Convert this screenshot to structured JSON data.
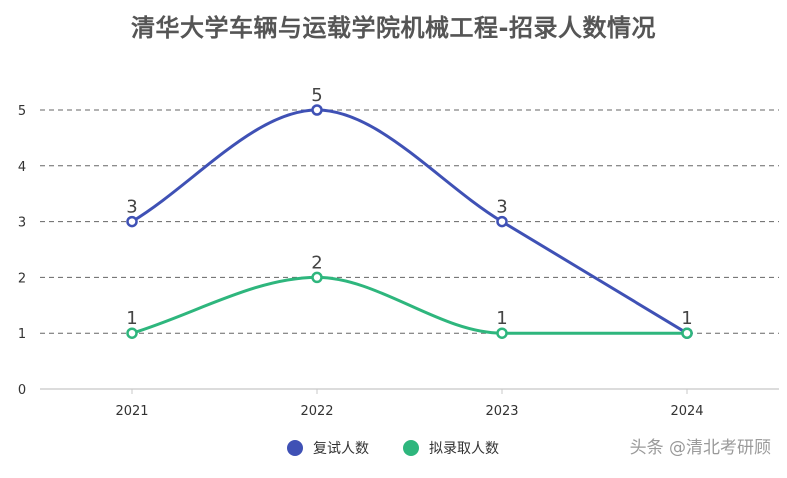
{
  "watermark": "头条 @清北考研顾",
  "chart_data": {
    "type": "line",
    "title": "清华大学车辆与运载学院机械工程-招录人数情况",
    "categories": [
      "2021",
      "2022",
      "2023",
      "2024"
    ],
    "series": [
      {
        "name": "复试人数",
        "values": [
          3,
          5,
          3,
          1
        ],
        "color": "#3f51b5"
      },
      {
        "name": "拟录取人数",
        "values": [
          1,
          2,
          1,
          1
        ],
        "color": "#2eb67d"
      }
    ],
    "ylim": [
      0,
      5
    ],
    "yticks": [
      0,
      1,
      2,
      3,
      4,
      5
    ],
    "grid": true,
    "smooth": true,
    "legend": "bottom-center"
  }
}
